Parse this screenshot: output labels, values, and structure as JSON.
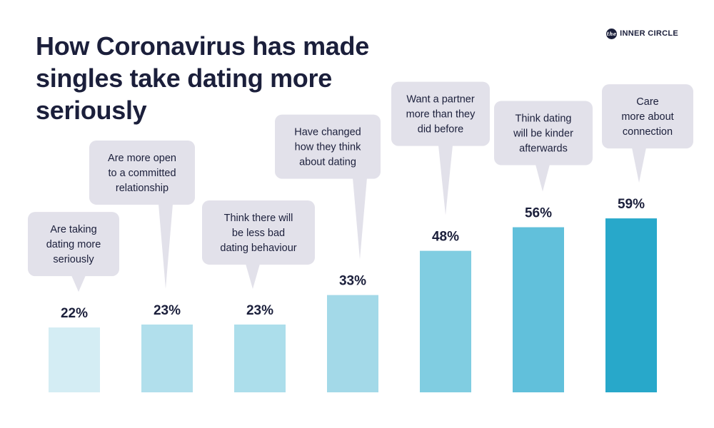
{
  "header": {
    "title": "How Coronavirus has made singles take dating more seriously",
    "brand_mark": "the",
    "brand_name": "INNER CIRCLE"
  },
  "chart_data": {
    "type": "bar",
    "title": "How Coronavirus has made singles take dating more seriously",
    "categories": [
      "Are taking dating more seriously",
      "Are more open to a committed relationship",
      "Think there will be less bad dating behaviour",
      "Have changed how they think about dating",
      "Want a partner more than they did before",
      "Think dating will be kinder afterwards",
      "Care more about connection"
    ],
    "category_lines": [
      [
        "Are taking",
        "dating more",
        "seriously"
      ],
      [
        "Are more open",
        "to a committed",
        "relationship"
      ],
      [
        "Think there will",
        "be less bad",
        "dating behaviour"
      ],
      [
        "Have changed",
        "how they think",
        "about dating"
      ],
      [
        "Want a partner",
        "more than they",
        "did before"
      ],
      [
        "Think dating",
        "will be kinder",
        "afterwards"
      ],
      [
        "Care",
        "more about",
        "connection"
      ]
    ],
    "values": [
      22,
      23,
      23,
      33,
      48,
      56,
      59
    ],
    "value_labels": [
      "22%",
      "23%",
      "23%",
      "33%",
      "48%",
      "56%",
      "59%"
    ],
    "unit": "%",
    "colors": [
      "#d4edf4",
      "#b1dfec",
      "#acdeeb",
      "#a3d9e8",
      "#80cde1",
      "#61c0db",
      "#28a8ca"
    ],
    "callout_color": "#e2e1ea",
    "text_color": "#1b1f3b",
    "grid": false,
    "legend": false
  }
}
